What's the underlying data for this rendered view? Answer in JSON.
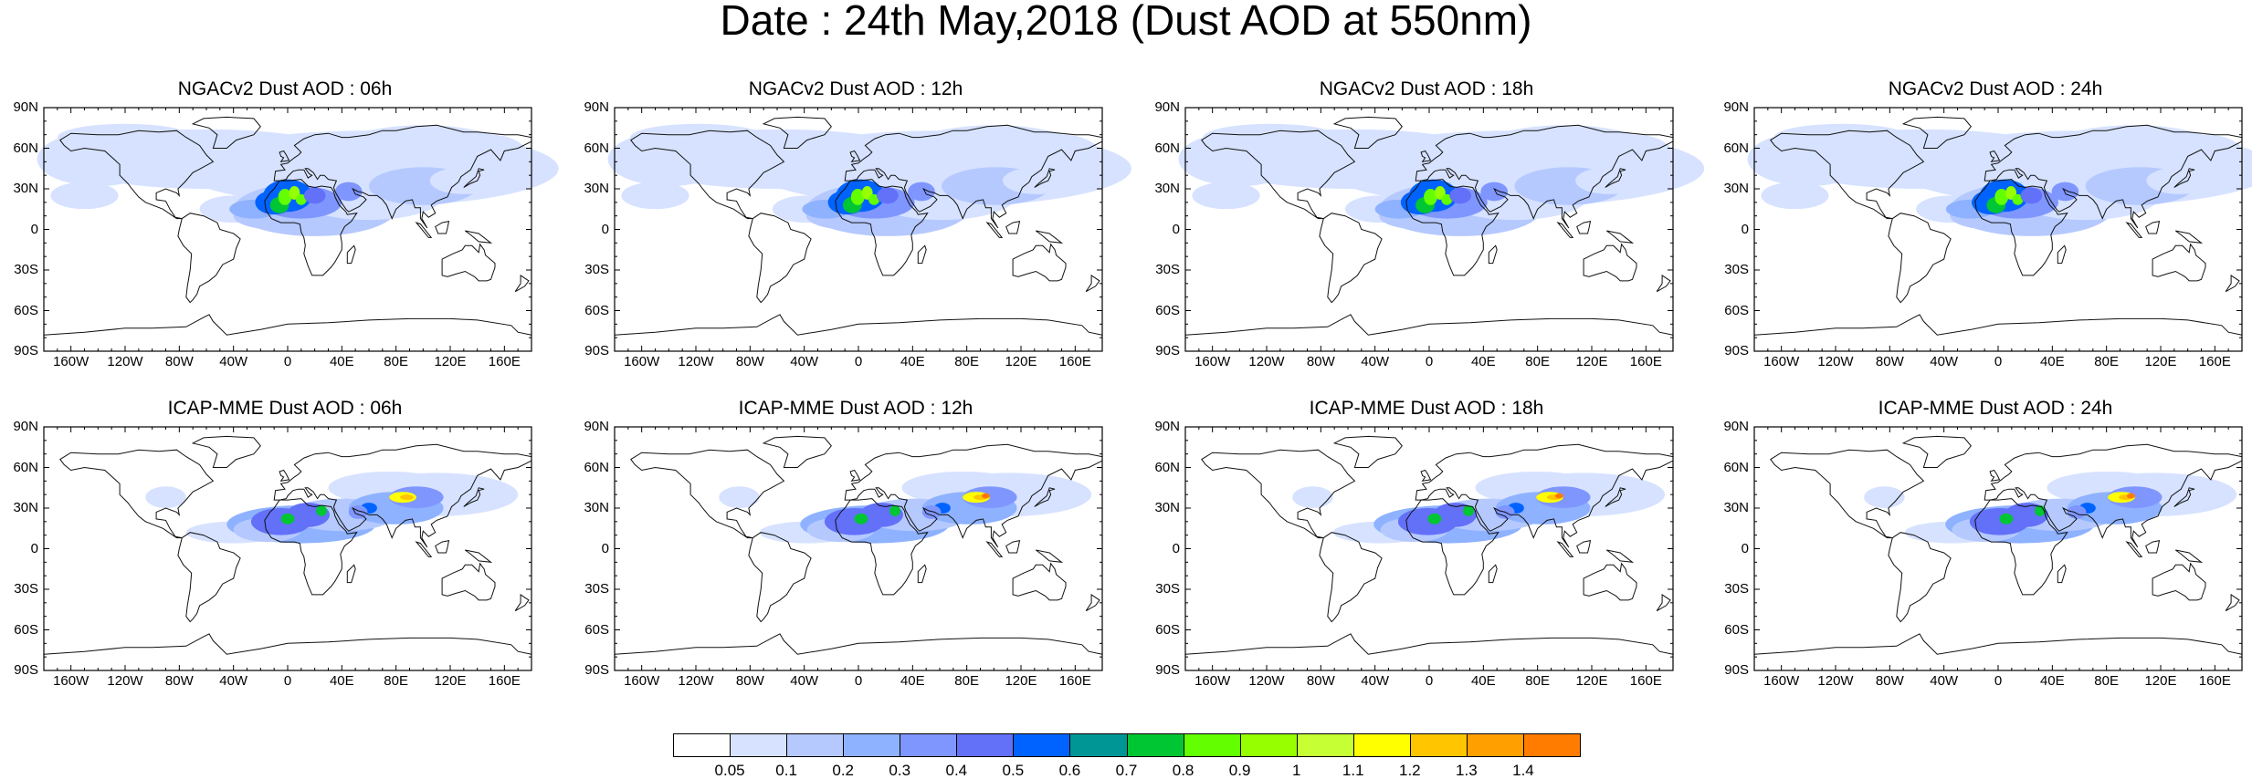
{
  "title": "Date : 24th May,2018 (Dust AOD at 550nm)",
  "panels": [
    {
      "title": "NGACv2 Dust AOD : 06h",
      "model": "ngac",
      "lead": 0
    },
    {
      "title": "NGACv2 Dust AOD : 12h",
      "model": "ngac",
      "lead": 1
    },
    {
      "title": "NGACv2 Dust AOD : 18h",
      "model": "ngac",
      "lead": 2
    },
    {
      "title": "NGACv2 Dust AOD : 24h",
      "model": "ngac",
      "lead": 3
    },
    {
      "title": "ICAP-MME Dust AOD : 06h",
      "model": "icap",
      "lead": 0
    },
    {
      "title": "ICAP-MME Dust AOD : 12h",
      "model": "icap",
      "lead": 1
    },
    {
      "title": "ICAP-MME Dust AOD : 18h",
      "model": "icap",
      "lead": 2
    },
    {
      "title": "ICAP-MME Dust AOD : 24h",
      "model": "icap",
      "lead": 3
    }
  ],
  "lat_ticks": [
    "90N",
    "60N",
    "30N",
    "0",
    "30S",
    "60S",
    "90S"
  ],
  "lon_ticks": [
    "160W",
    "120W",
    "80W",
    "40W",
    "0",
    "40E",
    "80E",
    "120E",
    "160E"
  ],
  "lon_tick_values": [
    -160,
    -120,
    -80,
    -40,
    0,
    40,
    80,
    120,
    160
  ],
  "colorbar": {
    "labels": [
      "0.05",
      "0.1",
      "0.2",
      "0.3",
      "0.4",
      "0.5",
      "0.6",
      "0.7",
      "0.8",
      "0.9",
      "1",
      "1.1",
      "1.2",
      "1.3",
      "1.4"
    ],
    "colors": [
      "#ffffff",
      "#d6e2ff",
      "#b5c9ff",
      "#8eb2ff",
      "#7f96ff",
      "#6370f8",
      "#0063ff",
      "#009696",
      "#00c633",
      "#63ff00",
      "#96ff00",
      "#c6ff33",
      "#ffff00",
      "#ffc600",
      "#ffa000",
      "#ff7c00",
      "#ff1900"
    ]
  }
}
